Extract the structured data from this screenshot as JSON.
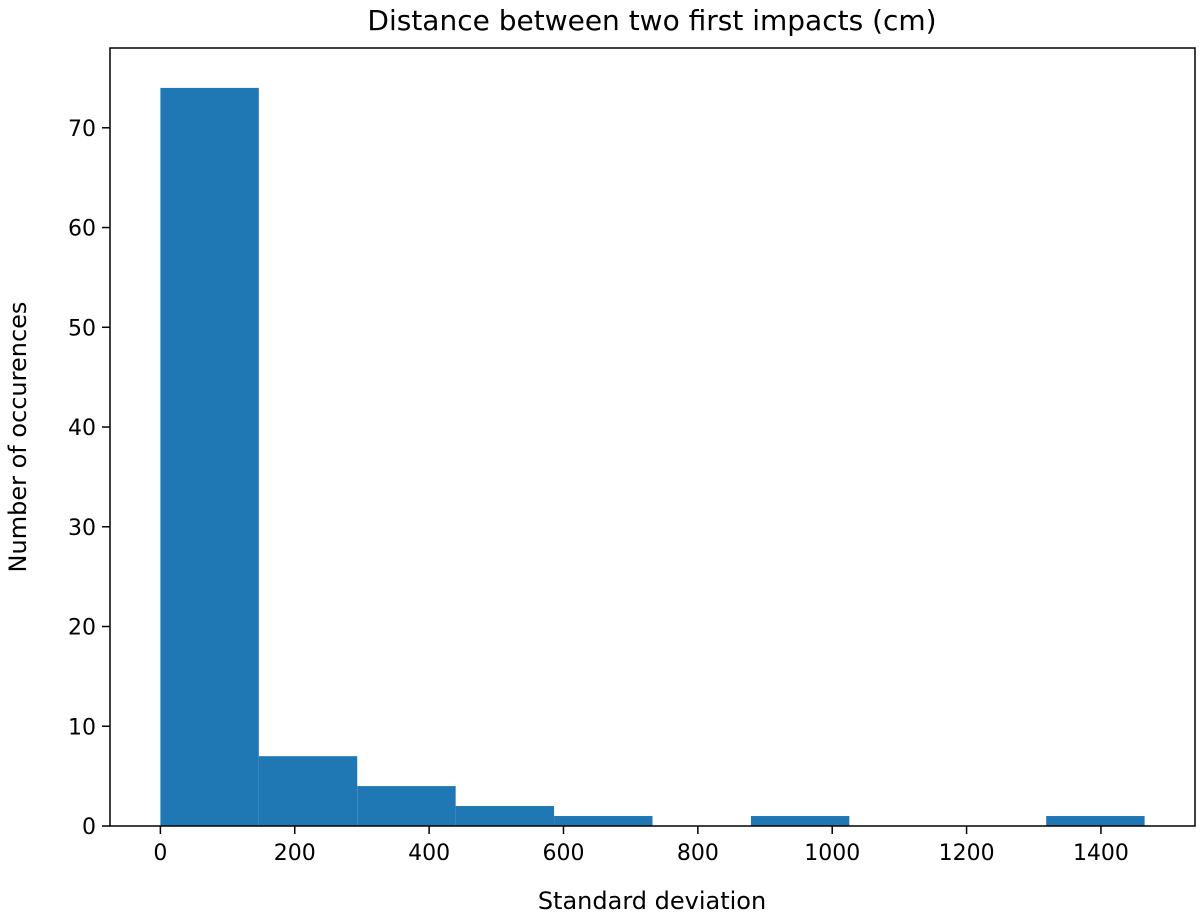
{
  "chart_data": {
    "type": "bar",
    "title": "Distance between two first impacts (cm)",
    "xlabel": "Standard deviation",
    "ylabel": "Number of occurences",
    "xlim": [
      -75,
      1540
    ],
    "ylim": [
      0,
      78
    ],
    "xticks": [
      0,
      200,
      400,
      600,
      800,
      1000,
      1200,
      1400
    ],
    "yticks": [
      0,
      10,
      20,
      30,
      40,
      50,
      60,
      70
    ],
    "bin_edges": [
      0,
      146.5,
      293,
      439.5,
      586,
      732.5,
      879,
      1025.5,
      1172,
      1318.5,
      1465
    ],
    "values": [
      74,
      7,
      4,
      2,
      1,
      0,
      1,
      0,
      0,
      1
    ],
    "bar_color": "#1f77b4",
    "grid": false,
    "legend": false
  }
}
